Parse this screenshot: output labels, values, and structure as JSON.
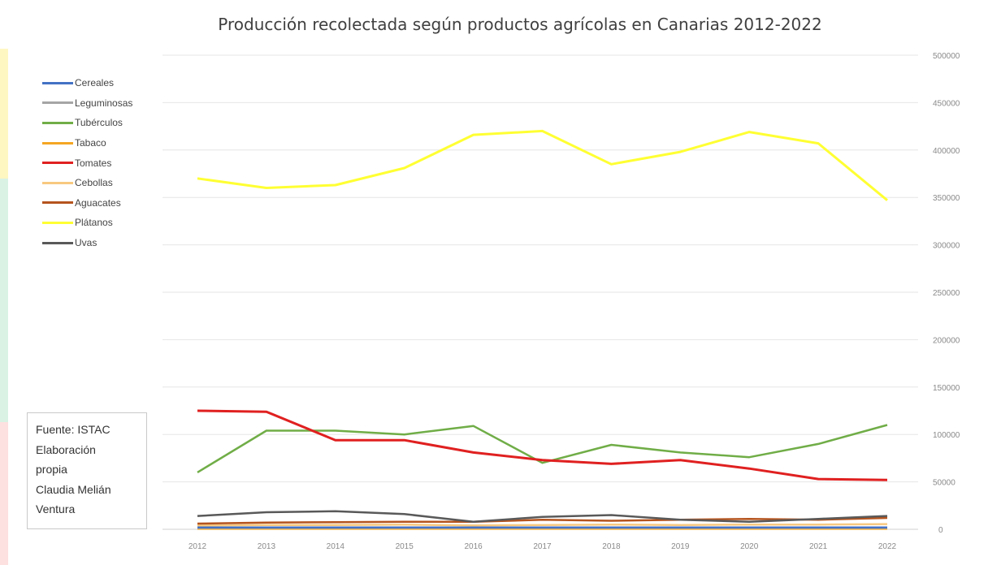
{
  "chart_data": {
    "type": "line",
    "title": "Producción recolectada según productos agrícolas en Canarias 2012-2022",
    "x": [
      "2012",
      "2013",
      "2014",
      "2015",
      "2016",
      "2017",
      "2018",
      "2019",
      "2020",
      "2021",
      "2022"
    ],
    "ylim": [
      0,
      500000
    ],
    "yticks": [
      "500000",
      "450000",
      "400000",
      "350000",
      "300000",
      "250000",
      "200000",
      "150000",
      "100000",
      "50000",
      "0"
    ],
    "y_axis_side": "right",
    "grid": true,
    "legend_position": "top-left",
    "series": [
      {
        "name": "Cereales",
        "color": "#4472c4",
        "values": [
          2000,
          2000,
          2000,
          2000,
          2000,
          2000,
          2000,
          2000,
          2000,
          2000,
          2000
        ]
      },
      {
        "name": "Leguminosas",
        "color": "#a5a5a5",
        "values": [
          1500,
          1500,
          1500,
          1500,
          1500,
          1500,
          1500,
          1500,
          1500,
          1500,
          1500
        ]
      },
      {
        "name": "Tubérculos",
        "color": "#70ad47",
        "values": [
          60000,
          104000,
          104000,
          100000,
          109000,
          70000,
          89000,
          81000,
          76000,
          90000,
          110000
        ]
      },
      {
        "name": "Tabaco",
        "color": "#f5a623",
        "values": [
          500,
          500,
          500,
          500,
          500,
          500,
          500,
          500,
          500,
          500,
          500
        ]
      },
      {
        "name": "Tomates",
        "color": "#e02020",
        "values": [
          125000,
          124000,
          94000,
          94000,
          81000,
          73000,
          69000,
          73000,
          64000,
          53000,
          52000
        ]
      },
      {
        "name": "Cebollas",
        "color": "#f8c980",
        "values": [
          4000,
          4500,
          4500,
          5000,
          4000,
          4500,
          5000,
          4500,
          5000,
          5000,
          5500
        ]
      },
      {
        "name": "Aguacates",
        "color": "#b5541e",
        "values": [
          6000,
          7000,
          7500,
          8000,
          8000,
          10000,
          9000,
          10000,
          11000,
          10000,
          12000
        ]
      },
      {
        "name": "Plátanos",
        "color": "#ffff33",
        "values": [
          370000,
          360000,
          363000,
          381000,
          416000,
          420000,
          385000,
          398000,
          419000,
          407000,
          347000
        ]
      },
      {
        "name": "Uvas",
        "color": "#595959",
        "values": [
          14000,
          18000,
          19000,
          16000,
          8000,
          13000,
          15000,
          10000,
          8000,
          11000,
          14000
        ]
      }
    ]
  },
  "legend": {
    "items": [
      "Cereales",
      "Leguminosas",
      "Tubérculos",
      "Tabaco",
      "Tomates",
      "Cebollas",
      "Aguacates",
      "Plátanos",
      "Uvas"
    ]
  },
  "source_box": {
    "lines": [
      "Fuente: ISTAC",
      "Elaboración",
      "propia",
      "Claudia Melián",
      "Ventura"
    ]
  }
}
